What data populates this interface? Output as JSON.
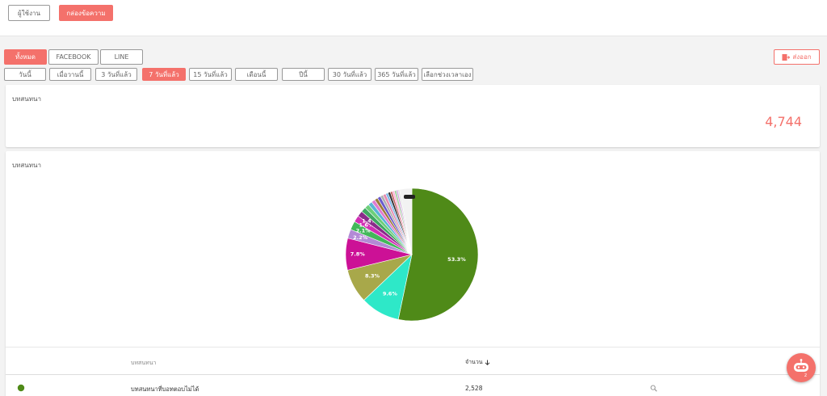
{
  "top_tabs": [
    "ผู้ใช้งาน",
    "กล่องข้อความ"
  ],
  "channels": [
    "ทั้งหมด",
    "FACEBOOK",
    "LINE"
  ],
  "export_label": "ส่งออก",
  "ranges": [
    "วันนี้",
    "เมื่อวานนี้",
    "3 วันที่แล้ว",
    "7 วันที่แล้ว",
    "15 วันที่แล้ว",
    "เดือนนี้",
    "ปีนี้",
    "30 วันที่แล้ว",
    "365 วันที่แล้ว",
    "เลือกช่วงเวลาเอง"
  ],
  "summary": {
    "title": "บทสนทนา",
    "total": "4,744"
  },
  "chart_card": {
    "title": "บทสนทนา"
  },
  "chart_data": {
    "type": "pie",
    "slices": [
      {
        "value": 53.3,
        "label": "53.3%",
        "color": "#4f8a18"
      },
      {
        "value": 9.6,
        "label": "9.6%",
        "color": "#2ee8c8"
      },
      {
        "value": 8.3,
        "label": "8.3%",
        "color": "#a8a84a"
      },
      {
        "value": 7.8,
        "label": "7.8%",
        "color": "#cc1196"
      },
      {
        "value": 2.2,
        "label": "2.2%",
        "color": "#b38ad6"
      },
      {
        "value": 2.1,
        "label": "2.1%",
        "color": "#42b85a"
      },
      {
        "value": 1.6,
        "label": "1.6%",
        "color": "#d12fb4"
      },
      {
        "value": 1.4,
        "label": "1.4%",
        "color": "#8a2b8a"
      },
      {
        "value": 1.2,
        "label": "",
        "color": "#3fa862"
      },
      {
        "value": 1.1,
        "label": "",
        "color": "#6ccf7a"
      },
      {
        "value": 1.0,
        "label": "",
        "color": "#5ab4d6"
      },
      {
        "value": 0.9,
        "label": "",
        "color": "#e07ad0"
      },
      {
        "value": 0.8,
        "label": "",
        "color": "#9d7a3a"
      },
      {
        "value": 0.8,
        "label": "",
        "color": "#6a5acd"
      },
      {
        "value": 0.7,
        "label": "",
        "color": "#b0b0b0"
      },
      {
        "value": 0.7,
        "label": "",
        "color": "#e68ab0"
      },
      {
        "value": 0.6,
        "label": "",
        "color": "#7fb8e8"
      },
      {
        "value": 0.6,
        "label": "",
        "color": "#333333"
      },
      {
        "value": 0.5,
        "label": "",
        "color": "#c46060"
      },
      {
        "value": 0.5,
        "label": "",
        "color": "#ffb0d8"
      },
      {
        "value": 0.5,
        "label": "",
        "color": "#a0d0a0"
      },
      {
        "value": 0.4,
        "label": "",
        "color": "#d0a0e0"
      },
      {
        "value": 0.4,
        "label": "",
        "color": "#e0e0e0"
      },
      {
        "value": 3.0,
        "label": "",
        "color": "#f2f2f2"
      }
    ]
  },
  "table": {
    "headers": [
      "บทสนทนา",
      "จำนวน"
    ],
    "rows": [
      {
        "name": "บทสนทนาที่บอทตอบไม่ได้",
        "count": "2,528",
        "dot_color": "#4f8a18"
      }
    ]
  },
  "icons": {
    "sort": "arrow-down-icon",
    "search": "search-icon",
    "export": "export-icon",
    "bot": "robot-icon"
  }
}
